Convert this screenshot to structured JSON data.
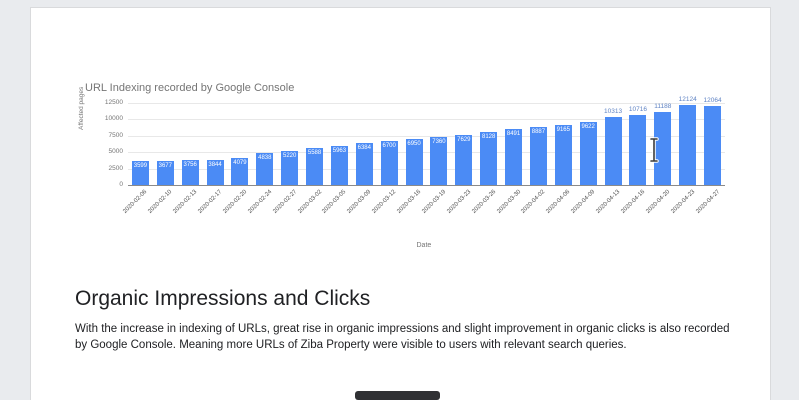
{
  "window": {
    "background_color": "#e9ebee",
    "page_background_color": "#ffffff"
  },
  "chart_data": {
    "type": "bar",
    "title": "URL Indexing recorded by Google Console",
    "xlabel": "Date",
    "ylabel": "Affected pages",
    "ylim": [
      0,
      12500
    ],
    "yticks": [
      0,
      2500,
      5000,
      7500,
      10000,
      12500
    ],
    "grid": true,
    "legend": "none",
    "bar_color": "#4b8bf5",
    "label_inside_color": "#ffffff",
    "label_outside_color": "#5f83c4",
    "outside_label_threshold": 10000,
    "categories": [
      "2020-02-06",
      "2020-02-10",
      "2020-02-13",
      "2020-02-17",
      "2020-02-20",
      "2020-02-24",
      "2020-02-27",
      "2020-03-02",
      "2020-03-05",
      "2020-03-09",
      "2020-03-12",
      "2020-03-16",
      "2020-03-19",
      "2020-03-23",
      "2020-03-26",
      "2020-03-30",
      "2020-04-02",
      "2020-04-06",
      "2020-04-09",
      "2020-04-13",
      "2020-04-16",
      "2020-04-20",
      "2020-04-23",
      "2020-04-27"
    ],
    "values": [
      3599,
      3677,
      3756,
      3844,
      4079,
      4838,
      5220,
      5588,
      5963,
      6384,
      6700,
      6950,
      7360,
      7629,
      8128,
      8491,
      8887,
      9165,
      9622,
      10313,
      10716,
      11188,
      12124,
      12064
    ]
  },
  "document": {
    "heading": "Organic Impressions and Clicks",
    "paragraph": "With the increase in indexing of URLs, great rise in organic impressions and slight improvement in organic clicks is also recorded by Google Console. Meaning more URLs of Ziba Property were visible to users with relevant search queries."
  }
}
